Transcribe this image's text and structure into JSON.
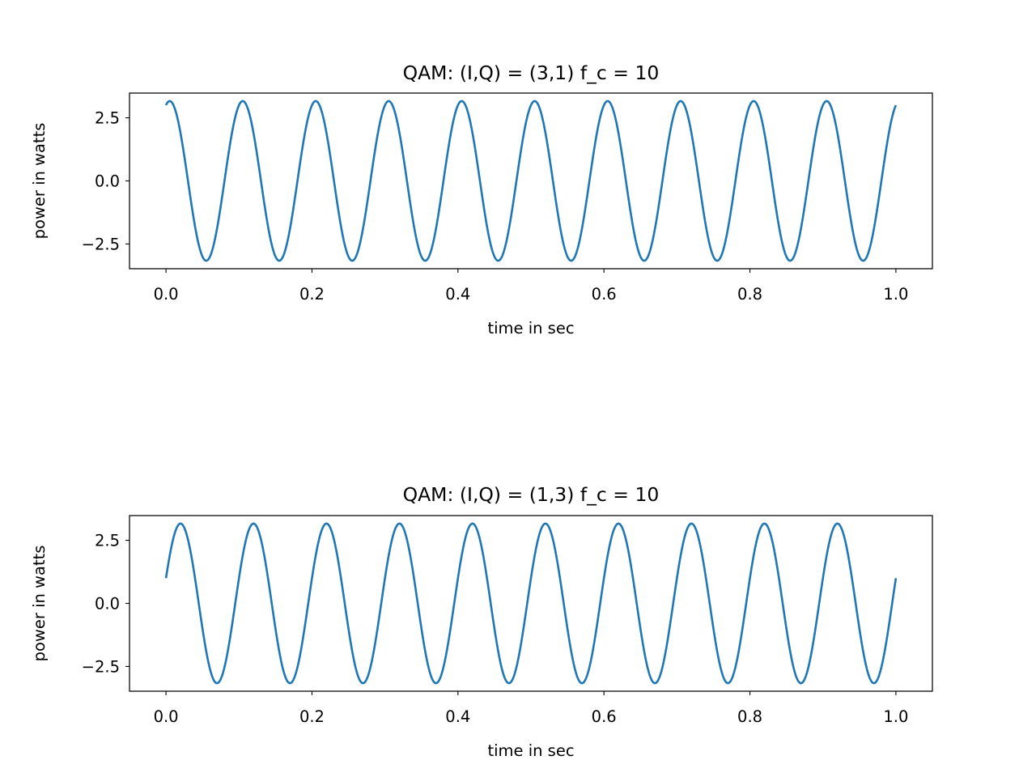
{
  "chart_data": [
    {
      "type": "line",
      "title": "QAM: (I,Q) = (3,1) f_c = 10",
      "xlabel": "time in sec",
      "ylabel": "power in watts",
      "xlim": [
        -0.05,
        1.05
      ],
      "ylim": [
        -3.48,
        3.48
      ],
      "xticks": [
        0.0,
        0.2,
        0.4,
        0.6,
        0.8,
        1.0
      ],
      "xtick_labels": [
        "0.0",
        "0.2",
        "0.4",
        "0.6",
        "0.8",
        "1.0"
      ],
      "yticks": [
        -2.5,
        0.0,
        2.5
      ],
      "ytick_labels": [
        "−2.5",
        "0.0",
        "2.5"
      ],
      "grid": false,
      "series": [
        {
          "function": "I*cos(2*pi*f_c*t) + Q*sin(2*pi*f_c*t)",
          "I": 3,
          "Q": 1,
          "f_c": 10,
          "t_start": 0.0,
          "t_end": 1.0,
          "color": "#1f77b4"
        }
      ]
    },
    {
      "type": "line",
      "title": "QAM: (I,Q) = (1,3) f_c = 10",
      "xlabel": "time in sec",
      "ylabel": "power in watts",
      "xlim": [
        -0.05,
        1.05
      ],
      "ylim": [
        -3.48,
        3.48
      ],
      "xticks": [
        0.0,
        0.2,
        0.4,
        0.6,
        0.8,
        1.0
      ],
      "xtick_labels": [
        "0.0",
        "0.2",
        "0.4",
        "0.6",
        "0.8",
        "1.0"
      ],
      "yticks": [
        -2.5,
        0.0,
        2.5
      ],
      "ytick_labels": [
        "−2.5",
        "0.0",
        "2.5"
      ],
      "grid": false,
      "series": [
        {
          "function": "I*cos(2*pi*f_c*t) + Q*sin(2*pi*f_c*t)",
          "I": 1,
          "Q": 3,
          "f_c": 10,
          "t_start": 0.0,
          "t_end": 1.0,
          "color": "#1f77b4"
        }
      ]
    }
  ]
}
